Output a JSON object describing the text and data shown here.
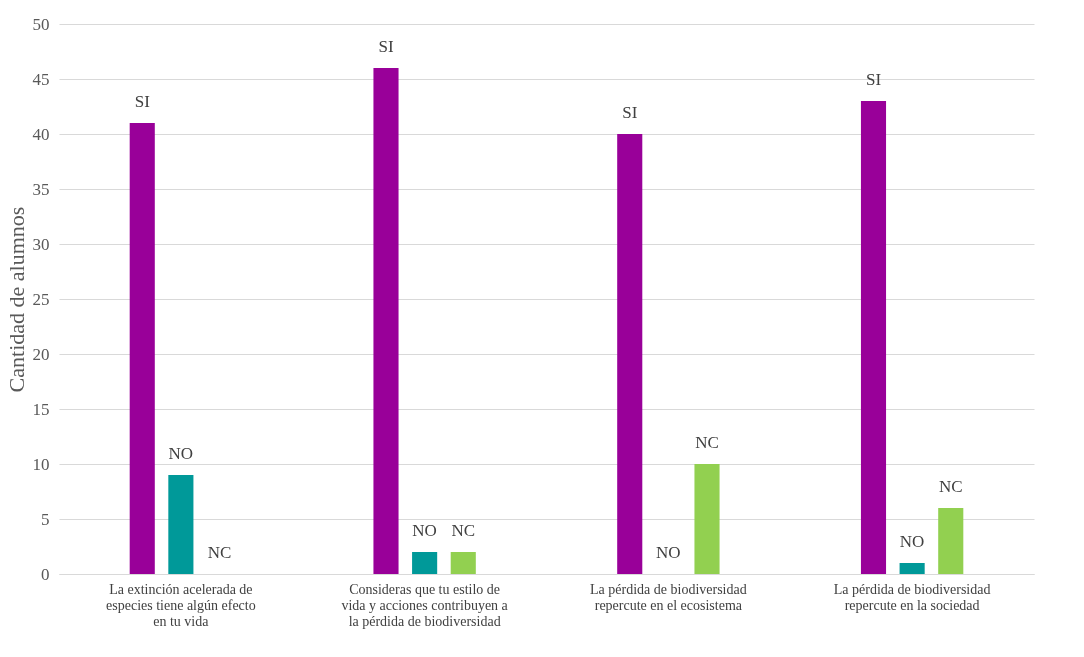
{
  "chart_data": {
    "type": "bar",
    "ylabel": "Cantidad de alumnos",
    "categories": [
      "La extinción acelerada de especies tiene algún efecto en tu vida",
      "Consideras que tu estilo de vida y acciones contribuyen a la pérdida de biodiversidad",
      "La pérdida de biodiversidad repercute en el ecosistema",
      "La pérdida de biodiversidad repercute en la sociedad"
    ],
    "series": [
      {
        "name": "SI",
        "color": "#990099",
        "values": [
          41,
          46,
          40,
          43
        ]
      },
      {
        "name": "NO",
        "color": "#009999",
        "values": [
          9,
          2,
          0,
          1
        ]
      },
      {
        "name": "NC",
        "color": "#92d050",
        "values": [
          0,
          2,
          10,
          6
        ]
      }
    ],
    "ylim": [
      0,
      50
    ],
    "yticks": [
      0,
      5,
      10,
      15,
      20,
      25,
      30,
      35,
      40,
      45,
      50
    ],
    "grid": "y",
    "legend": false
  }
}
